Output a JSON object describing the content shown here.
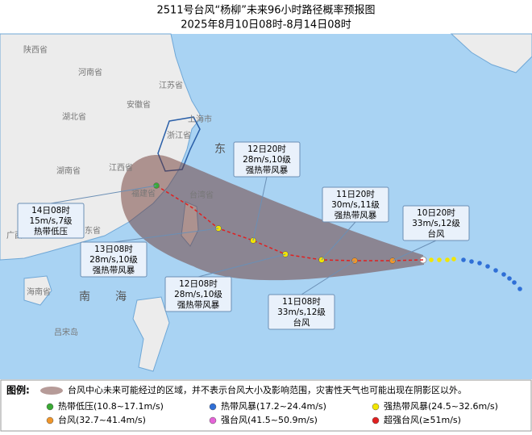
{
  "header": {
    "title": "2511号台风“杨柳”未来96小时路径概率预报图",
    "subtitle": "2025年8月10日08时-8月14日08时"
  },
  "map_labels": [
    "陕西省",
    "河南省",
    "江苏省",
    "湖北省",
    "安徽省",
    "上海市",
    "浙江省",
    "湖南省",
    "江西省",
    "福建省",
    "台湾省",
    "广东省",
    "广西",
    "海南省",
    "东",
    "南",
    "海",
    "吕宋岛"
  ],
  "forecasts": [
    {
      "time": "10日20时",
      "wind": "33m/s,12级",
      "category": "台风"
    },
    {
      "time": "11日08时",
      "wind": "33m/s,12级",
      "category": "台风"
    },
    {
      "time": "11日20时",
      "wind": "30m/s,11级",
      "category": "强热带风暴"
    },
    {
      "time": "12日08时",
      "wind": "28m/s,10级",
      "category": "强热带风暴"
    },
    {
      "time": "12日20时",
      "wind": "28m/s,10级",
      "category": "强热带风暴"
    },
    {
      "time": "13日08时",
      "wind": "28m/s,10级",
      "category": "强热带风暴"
    },
    {
      "time": "14日08时",
      "wind": "15m/s,7级",
      "category": "热带低压"
    }
  ],
  "legend": {
    "title": "图例:",
    "cone_note": "台风中心未来可能经过的区域，并不表示台风大小及影响范围，灾害性天气也可能出现在阴影区以外。",
    "items": [
      {
        "label": "热带低压(10.8~17.1m/s)",
        "color": "#3aaa35"
      },
      {
        "label": "热带风暴(17.2~24.4m/s)",
        "color": "#2f6fd6"
      },
      {
        "label": "强热带风暴(24.5~32.6m/s)",
        "color": "#f2e600"
      },
      {
        "label": "台风(32.7~41.4m/s)",
        "color": "#f0962a"
      },
      {
        "label": "强台风(41.5~50.9m/s)",
        "color": "#e563d8"
      },
      {
        "label": "超强台风(≥51m/s)",
        "color": "#e02020"
      }
    ]
  }
}
